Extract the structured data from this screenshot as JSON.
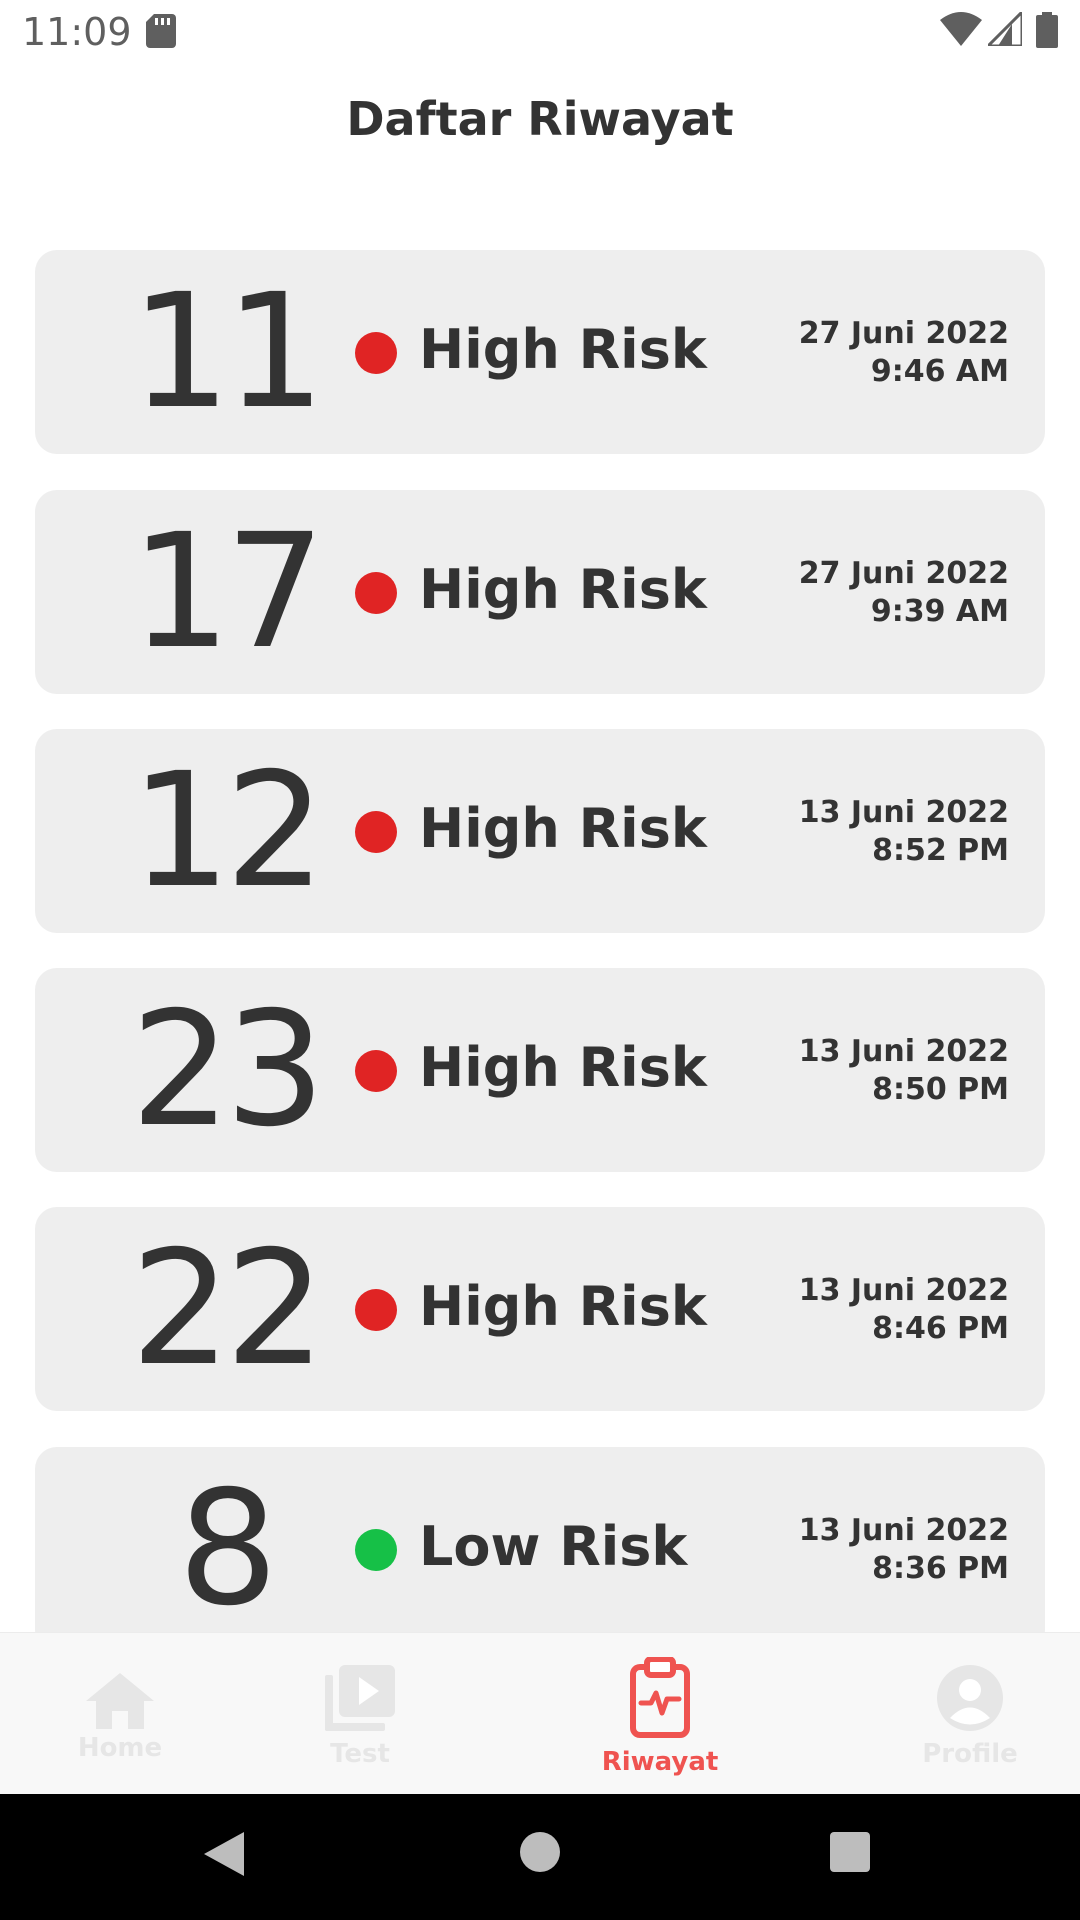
{
  "status_bar": {
    "time": "11:09"
  },
  "page": {
    "title": "Daftar Riwayat"
  },
  "colors": {
    "high": "#e02424",
    "low": "#16c047",
    "accent": "#ef5350",
    "inactive": "#e6e6e6"
  },
  "history": [
    {
      "score": "11",
      "risk": "High Risk",
      "level": "high",
      "date": "27 Juni 2022",
      "time": "9:46 AM"
    },
    {
      "score": "17",
      "risk": "High Risk",
      "level": "high",
      "date": "27 Juni 2022",
      "time": "9:39 AM"
    },
    {
      "score": "12",
      "risk": "High Risk",
      "level": "high",
      "date": "13 Juni 2022",
      "time": "8:52 PM"
    },
    {
      "score": "23",
      "risk": "High Risk",
      "level": "high",
      "date": "13 Juni 2022",
      "time": "8:50 PM"
    },
    {
      "score": "22",
      "risk": "High Risk",
      "level": "high",
      "date": "13 Juni 2022",
      "time": "8:46 PM"
    },
    {
      "score": "8",
      "risk": "Low Risk",
      "level": "low",
      "date": "13 Juni 2022",
      "time": "8:36 PM"
    }
  ],
  "bottom_nav": {
    "items": [
      {
        "label": "Home",
        "icon": "home-icon",
        "active": false
      },
      {
        "label": "Test",
        "icon": "video-icon",
        "active": false
      },
      {
        "label": "Riwayat",
        "icon": "clipboard-pulse-icon",
        "active": true
      },
      {
        "label": "Profile",
        "icon": "account-icon",
        "active": false
      }
    ]
  }
}
